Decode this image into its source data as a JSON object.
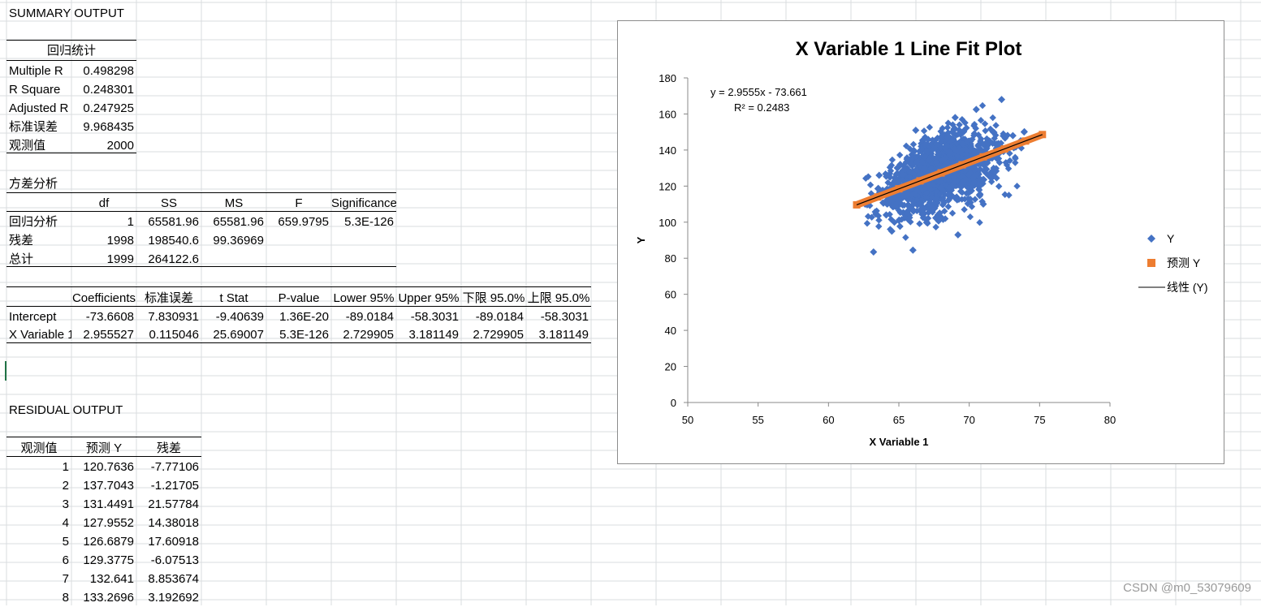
{
  "summary": {
    "title": "SUMMARY OUTPUT",
    "regression_stats_header": "回归统计",
    "rows": [
      {
        "label": "Multiple R",
        "value": "0.498298"
      },
      {
        "label": "R Square",
        "value": "0.248301"
      },
      {
        "label": "Adjusted R Square",
        "value": "0.247925"
      },
      {
        "label": "标准误差",
        "value": "9.968435"
      },
      {
        "label": "观测值",
        "value": "2000"
      }
    ]
  },
  "anova": {
    "title": "方差分析",
    "headers": [
      "",
      "df",
      "SS",
      "MS",
      "F",
      "Significance F"
    ],
    "rows": [
      [
        "回归分析",
        "1",
        "65581.96",
        "65581.96",
        "659.9795",
        "5.3E-126"
      ],
      [
        "残差",
        "1998",
        "198540.6",
        "99.36969",
        "",
        ""
      ],
      [
        "总计",
        "1999",
        "264122.6",
        "",
        "",
        ""
      ]
    ]
  },
  "coefficients": {
    "headers": [
      "",
      "Coefficients",
      "标准误差",
      "t Stat",
      "P-value",
      "Lower 95%",
      "Upper 95%",
      "下限 95.0%",
      "上限 95.0%"
    ],
    "rows": [
      [
        "Intercept",
        "-73.6608",
        "7.830931",
        "-9.40639",
        "1.36E-20",
        "-89.0184",
        "-58.3031",
        "-89.0184",
        "-58.3031"
      ],
      [
        "X Variable 1",
        "2.955527",
        "0.115046",
        "25.69007",
        "5.3E-126",
        "2.729905",
        "3.181149",
        "2.729905",
        "3.181149"
      ]
    ]
  },
  "residual": {
    "title": "RESIDUAL OUTPUT",
    "headers": [
      "观测值",
      "预测 Y",
      "残差"
    ],
    "rows": [
      [
        "1",
        "120.7636",
        "-7.77106"
      ],
      [
        "2",
        "137.7043",
        "-1.21705"
      ],
      [
        "3",
        "131.4491",
        "21.57784"
      ],
      [
        "4",
        "127.9552",
        "14.38018"
      ],
      [
        "5",
        "126.6879",
        "17.60918"
      ],
      [
        "6",
        "129.3775",
        "-6.07513"
      ],
      [
        "7",
        "132.641",
        "8.853674"
      ],
      [
        "8",
        "133.2696",
        "3.192692"
      ]
    ]
  },
  "chart_data": {
    "type": "scatter",
    "title": "X Variable 1 Line Fit  Plot",
    "xlabel": "X Variable 1",
    "ylabel": "Y",
    "xlim": [
      50,
      80
    ],
    "ylim": [
      0,
      180
    ],
    "x_ticks": [
      "50",
      "55",
      "60",
      "65",
      "70",
      "75",
      "80"
    ],
    "y_ticks": [
      "0",
      "20",
      "40",
      "60",
      "80",
      "100",
      "120",
      "140",
      "160",
      "180"
    ],
    "grid": false,
    "legend_position": "right",
    "trendline": {
      "equation": "y = 2.9555x - 73.661",
      "r2": "R² = 0.2483",
      "slope": 2.9555,
      "intercept": -73.661,
      "x_range": [
        62,
        75.2
      ]
    },
    "series": [
      {
        "name": "Y",
        "marker": "diamond",
        "color": "#4472c4",
        "x": [
          63.2,
          66.0,
          69.2,
          72.3,
          70.5,
          66.2,
          64.1,
          71.0,
          73.9,
          62.6,
          67.5,
          68.2,
          65.4,
          69.8,
          70.9,
          64.5,
          66.8,
          67.9,
          71.7,
          73.1,
          65.1,
          68.6,
          63.6,
          72.0,
          69.0
        ],
        "y": [
          83.5,
          84.5,
          93.0,
          168.0,
          162.5,
          151.0,
          104.0,
          110.0,
          150.0,
          110.0,
          128.0,
          131.0,
          120.0,
          140.0,
          122.0,
          95.0,
          146.0,
          105.0,
          150.0,
          148.0,
          132.0,
          119.0,
          126.0,
          135.0,
          158.0
        ]
      },
      {
        "name": "预测 Y",
        "marker": "square",
        "color": "#ed7d31",
        "x": [
          62.0,
          63.5,
          65.0,
          66.5,
          68.0,
          69.5,
          71.0,
          72.5,
          74.0,
          75.2
        ],
        "y": [
          109.6,
          114.0,
          118.5,
          122.9,
          127.3,
          131.8,
          136.2,
          140.6,
          145.0,
          148.6
        ]
      },
      {
        "name": "线性 (Y)",
        "marker": "line",
        "color": "#000000"
      }
    ]
  },
  "watermark": "CSDN @m0_53079609"
}
